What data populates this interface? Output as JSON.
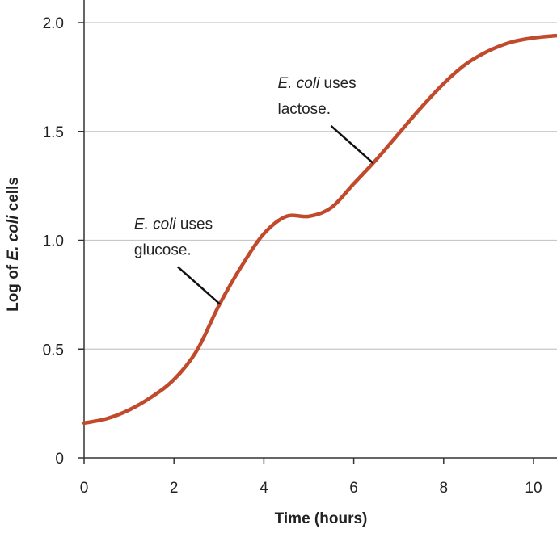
{
  "chart_data": {
    "type": "line",
    "xlabel": "Time (hours)",
    "ylabel": [
      "Log of ",
      "E. coli",
      " cells"
    ],
    "ylabel_italic": [
      false,
      true,
      false
    ],
    "x": [
      0,
      0.5,
      1,
      1.5,
      2,
      2.5,
      3,
      3.5,
      4,
      4.5,
      5,
      5.5,
      6,
      6.5,
      7,
      7.5,
      8,
      8.5,
      9,
      9.5,
      10,
      10.5
    ],
    "values": [
      0.16,
      0.18,
      0.22,
      0.28,
      0.36,
      0.49,
      0.7,
      0.88,
      1.03,
      1.11,
      1.11,
      1.15,
      1.26,
      1.37,
      1.49,
      1.61,
      1.72,
      1.81,
      1.87,
      1.91,
      1.93,
      1.94
    ],
    "color": "#c24a2c",
    "xlim": [
      0,
      10.52
    ],
    "xticks": [
      0,
      2,
      4,
      6,
      8,
      10
    ],
    "ylim": [
      0,
      2.0
    ],
    "yticks": [
      0,
      0.5,
      {
        "value": 1,
        "label": "1.0"
      },
      1.5,
      {
        "value": 2,
        "label": "2.0"
      }
    ],
    "grid": true,
    "annotations": [
      {
        "italic": "E. coli",
        "text": " uses",
        "line2": "glucose.",
        "x": 3.02
      },
      {
        "italic": "E. coli",
        "text": " uses",
        "line2": "lactose.",
        "x": 6.43
      }
    ]
  }
}
